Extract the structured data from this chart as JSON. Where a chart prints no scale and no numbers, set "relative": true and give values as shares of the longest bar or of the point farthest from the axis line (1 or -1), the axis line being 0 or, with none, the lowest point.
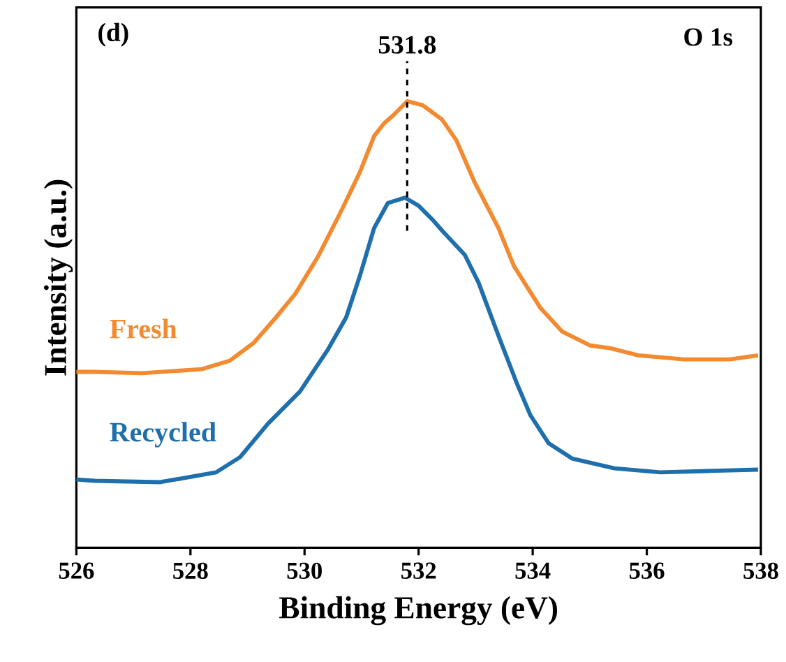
{
  "chart_data": {
    "type": "line",
    "relative": true,
    "xlabel": "Binding Energy (eV)",
    "ylabel": "Intensity (a.u.)",
    "xlim": [
      526,
      538
    ],
    "xticks": [
      526,
      528,
      530,
      532,
      534,
      536,
      538
    ],
    "line_style": "solid",
    "annotations": [
      "(d)",
      "O 1s"
    ],
    "ref_lines": [
      {
        "axis": "x",
        "value": 531.8,
        "label": "531.8",
        "line_style": "dashed",
        "color": "#000000"
      }
    ],
    "series": [
      {
        "name": "Fresh",
        "color": "#f28a30",
        "x": [
          526.0,
          526.32,
          527.15,
          528.2,
          528.69,
          529.11,
          529.5,
          529.84,
          530.24,
          530.65,
          530.97,
          531.22,
          531.39,
          531.56,
          531.8,
          532.07,
          532.41,
          532.66,
          532.98,
          533.4,
          533.67,
          534.13,
          534.52,
          535.01,
          535.36,
          535.85,
          536.65,
          537.46,
          537.95
        ],
        "values": [
          0.394,
          0.394,
          0.391,
          0.4,
          0.419,
          0.459,
          0.516,
          0.569,
          0.653,
          0.756,
          0.841,
          0.922,
          0.95,
          0.969,
          1.0,
          0.991,
          0.959,
          0.913,
          0.819,
          0.716,
          0.631,
          0.538,
          0.484,
          0.453,
          0.447,
          0.431,
          0.422,
          0.422,
          0.431
        ]
      },
      {
        "name": "Recycled",
        "color": "#1f6fad",
        "x": [
          526.0,
          526.32,
          527.47,
          528.45,
          528.87,
          529.36,
          529.92,
          530.41,
          530.73,
          530.97,
          531.22,
          531.46,
          531.76,
          532.0,
          532.25,
          532.42,
          532.81,
          533.05,
          533.4,
          533.71,
          533.96,
          534.28,
          534.69,
          535.43,
          536.24,
          537.07,
          537.95
        ],
        "values": [
          0.153,
          0.15,
          0.147,
          0.169,
          0.203,
          0.278,
          0.35,
          0.444,
          0.516,
          0.609,
          0.716,
          0.772,
          0.784,
          0.766,
          0.734,
          0.709,
          0.656,
          0.594,
          0.475,
          0.372,
          0.297,
          0.234,
          0.2,
          0.178,
          0.169,
          0.172,
          0.175
        ]
      }
    ]
  }
}
